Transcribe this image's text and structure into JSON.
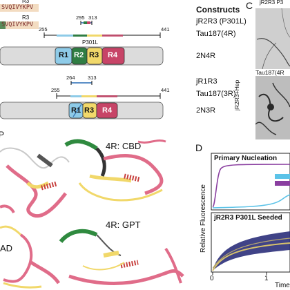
{
  "panel_letters": {
    "c": "C",
    "d": "D"
  },
  "constructs": {
    "heading": "Constructs",
    "seq_label": "R3",
    "seq_top": "SVQIVYKPV",
    "seq_mid": "SVQIVYKPV",
    "row1_label": "jR2R3 (P301L)",
    "row1_start": "295",
    "row1_end": "313",
    "row2_label": "Tau187(4R)",
    "row2_start": "255",
    "row2_end": "441",
    "row3_label": "2N4R",
    "p301l": "P301L",
    "repeats_4r": [
      "R1",
      "R2",
      "R3",
      "R4"
    ],
    "row4_label": "jR1R3",
    "row4_start": "264",
    "row4_end": "313",
    "row5_label": "Tau187(3R)",
    "row5_start": "255",
    "row5_end": "441",
    "row6_label": "2N3R",
    "repeats_3r": [
      "R1",
      "R3",
      "R4"
    ]
  },
  "structures": {
    "cbd": "4R: CBD",
    "gpt": "4R: GPT",
    "ad_partial": "AD",
    "p_partial": "P"
  },
  "micro": {
    "top_label": "jR2R3 P3",
    "mid_label": "Tau187(4R",
    "side_label": "jR2R3+Hep"
  },
  "kinetics": {
    "primary_title": "Primary Nucleation",
    "seeded_title": "jR2R3 P301L Seeded",
    "y_label": "Relative Fluorescence",
    "x_label": "Time",
    "x_ticks": [
      "0",
      "1"
    ],
    "colors": {
      "purple": "#8a3fa0",
      "lightblue": "#5cc3e8",
      "navy": "#2b2f7a",
      "gold": "#d7c26a"
    }
  },
  "colors": {
    "r1": "#8ecbe8",
    "r2": "#2f7d43",
    "r3": "#f1d86a",
    "r4": "#c74467",
    "gray": "#dcdcdc"
  }
}
